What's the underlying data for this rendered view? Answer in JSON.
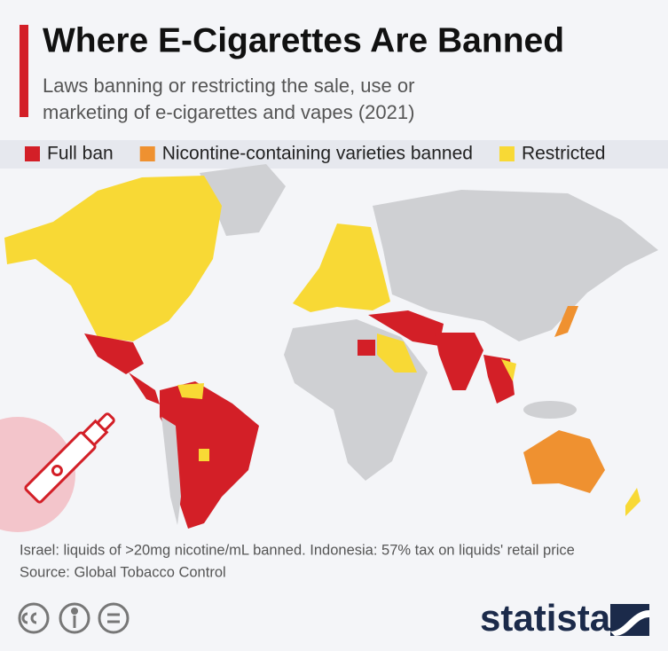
{
  "header": {
    "title": "Where E-Cigarettes Are Banned",
    "subtitle_lines": [
      "Laws banning or restricting the sale, use or",
      "marketing of e-cigarettes and vapes (2021)"
    ]
  },
  "legend": [
    {
      "label": "Full ban",
      "color": "#d31f27"
    },
    {
      "label": "Nicontine-containing varieties banned",
      "color": "#ef9130"
    },
    {
      "label": "Restricted",
      "color": "#f8d935"
    }
  ],
  "footer": {
    "note": "Israel: liquids of >20mg nicotine/mL banned. Indonesia: 57% tax on liquids' retail price",
    "source": "Source: Global Tobacco Control",
    "brand": "statista"
  }
}
